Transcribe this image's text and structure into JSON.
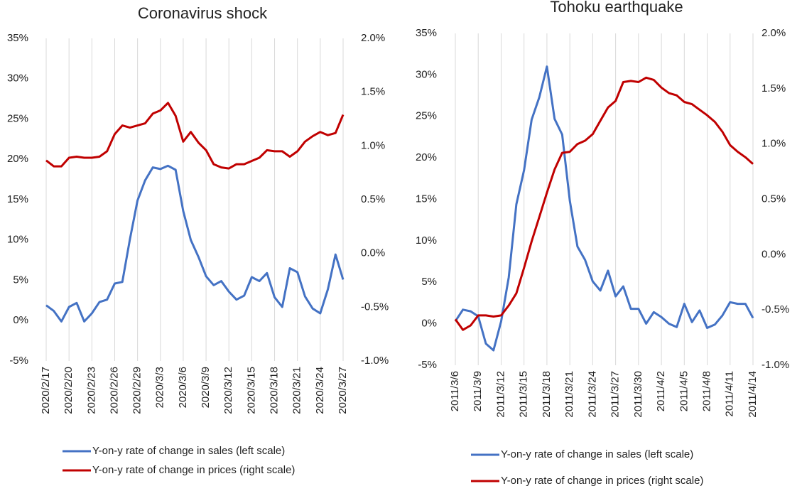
{
  "chart_data": [
    {
      "type": "line",
      "title": "Coronavirus shock",
      "categories": [
        "2020/2/17",
        null,
        null,
        "2020/2/20",
        null,
        null,
        "2020/2/23",
        null,
        null,
        "2020/2/26",
        null,
        null,
        "2020/2/29",
        null,
        null,
        "2020/3/3",
        null,
        null,
        "2020/3/6",
        null,
        null,
        "2020/3/9",
        null,
        null,
        "2020/3/12",
        null,
        null,
        "2020/3/15",
        null,
        null,
        "2020/3/18",
        null,
        null,
        "2020/3/21",
        null,
        null,
        "2020/3/24",
        null,
        null,
        "2020/3/27"
      ],
      "series": [
        {
          "name": "Y-on-y rate of change in sales (left scale)",
          "color": "#4472c4",
          "values": [
            1.9,
            1.2,
            -0.1,
            1.7,
            2.2,
            -0.1,
            0.9,
            2.3,
            2.6,
            4.6,
            4.8,
            10.1,
            14.9,
            17.4,
            19.0,
            18.8,
            19.2,
            18.7,
            13.6,
            10.0,
            7.9,
            5.5,
            4.4,
            4.9,
            3.6,
            2.6,
            3.1,
            5.4,
            4.9,
            5.9,
            2.9,
            1.7,
            6.5,
            6.0,
            3.0,
            1.5,
            0.9,
            3.9,
            8.2,
            5.1
          ]
        },
        {
          "name": "Y-on-y rate of change in prices (right scale)",
          "color": "#c00000",
          "axis": "y2",
          "values": [
            0.865,
            0.81,
            0.81,
            0.89,
            0.9,
            0.89,
            0.89,
            0.9,
            0.95,
            1.11,
            1.19,
            1.17,
            1.19,
            1.21,
            1.3,
            1.33,
            1.4,
            1.28,
            1.04,
            1.13,
            1.03,
            0.96,
            0.83,
            0.8,
            0.79,
            0.83,
            0.83,
            0.86,
            0.89,
            0.96,
            0.95,
            0.95,
            0.9,
            0.95,
            1.04,
            1.09,
            1.13,
            1.1,
            1.12,
            1.29
          ]
        }
      ],
      "ylim": [
        -5,
        35
      ],
      "yticks": [
        {
          "value": -5,
          "label": "-5%"
        },
        {
          "value": 0,
          "label": "0%"
        },
        {
          "value": 5,
          "label": "5%"
        },
        {
          "value": 10,
          "label": "10%"
        },
        {
          "value": 15,
          "label": "15%"
        },
        {
          "value": 20,
          "label": "20%"
        },
        {
          "value": 25,
          "label": "25%"
        },
        {
          "value": 30,
          "label": "30%"
        },
        {
          "value": 35,
          "label": "35%"
        }
      ],
      "y2lim": [
        -1.0,
        2.0
      ],
      "y2ticks": [
        {
          "value": -1.0,
          "label": "-1.0%"
        },
        {
          "value": -0.5,
          "label": "-0.5%"
        },
        {
          "value": 0.0,
          "label": "0.0%"
        },
        {
          "value": 0.5,
          "label": "0.5%"
        },
        {
          "value": 1.0,
          "label": "1.0%"
        },
        {
          "value": 1.5,
          "label": "1.5%"
        },
        {
          "value": 2.0,
          "label": "2.0%"
        }
      ],
      "grid": true,
      "legend": "bottom"
    },
    {
      "type": "line",
      "title": "Tohoku earthquake",
      "categories": [
        "2011/3/6",
        null,
        null,
        "2011/3/9",
        null,
        null,
        "2011/3/12",
        null,
        null,
        "2011/3/15",
        null,
        null,
        "2011/3/18",
        null,
        null,
        "2011/3/21",
        null,
        null,
        "2011/3/24",
        null,
        null,
        "2011/3/27",
        null,
        null,
        "2011/3/30",
        null,
        null,
        "2011/4/2",
        null,
        null,
        "2011/4/5",
        null,
        null,
        "2011/4/8",
        null,
        null,
        "2011/4/11",
        null,
        null,
        "2011/4/14"
      ],
      "series": [
        {
          "name": "Y-on-y rate of change in sales (left scale)",
          "color": "#4472c4",
          "values": [
            0.3,
            1.7,
            1.5,
            0.9,
            -2.4,
            -3.2,
            0.3,
            5.6,
            14.4,
            18.5,
            24.6,
            27.3,
            31.0,
            24.7,
            22.8,
            14.8,
            9.3,
            7.7,
            5.1,
            4.0,
            6.4,
            3.3,
            4.5,
            1.8,
            1.8,
            0.0,
            1.4,
            0.8,
            0.0,
            -0.4,
            2.4,
            0.2,
            1.6,
            -0.5,
            -0.1,
            1.0,
            2.6,
            2.4,
            2.4,
            0.7
          ]
        },
        {
          "name": "Y-on-y rate of change in prices (right scale)",
          "color": "#c00000",
          "axis": "y2",
          "values": [
            -0.585,
            -0.68,
            -0.64,
            -0.55,
            -0.55,
            -0.56,
            -0.55,
            -0.46,
            -0.35,
            -0.12,
            0.12,
            0.34,
            0.56,
            0.77,
            0.92,
            0.93,
            1.0,
            1.03,
            1.09,
            1.21,
            1.33,
            1.39,
            1.56,
            1.57,
            1.56,
            1.6,
            1.58,
            1.51,
            1.46,
            1.44,
            1.38,
            1.36,
            1.31,
            1.26,
            1.2,
            1.11,
            0.99,
            0.93,
            0.88,
            0.82
          ]
        }
      ],
      "ylim": [
        -5,
        35
      ],
      "yticks": [
        {
          "value": -5,
          "label": "-5%"
        },
        {
          "value": 0,
          "label": "0%"
        },
        {
          "value": 5,
          "label": "5%"
        },
        {
          "value": 10,
          "label": "10%"
        },
        {
          "value": 15,
          "label": "15%"
        },
        {
          "value": 20,
          "label": "20%"
        },
        {
          "value": 25,
          "label": "25%"
        },
        {
          "value": 30,
          "label": "30%"
        },
        {
          "value": 35,
          "label": "35%"
        }
      ],
      "y2lim": [
        -1.0,
        2.0
      ],
      "y2ticks": [
        {
          "value": -1.0,
          "label": "-1.0%"
        },
        {
          "value": -0.5,
          "label": "-0.5%"
        },
        {
          "value": 0.0,
          "label": "0.0%"
        },
        {
          "value": 0.5,
          "label": "0.5%"
        },
        {
          "value": 1.0,
          "label": "1.0%"
        },
        {
          "value": 1.5,
          "label": "1.5%"
        },
        {
          "value": 2.0,
          "label": "2.0%"
        }
      ],
      "grid": true,
      "legend": "bottom"
    }
  ]
}
